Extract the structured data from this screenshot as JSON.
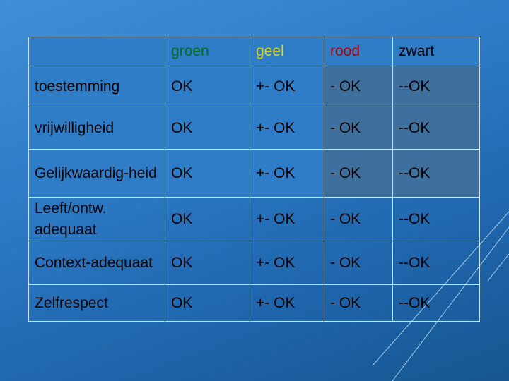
{
  "table": {
    "columns": [
      "",
      "groen",
      "geel",
      "rood",
      "zwart"
    ],
    "column_colors": [
      "",
      "#0b6b1f",
      "#d8d31a",
      "#b00000",
      "#000000"
    ],
    "rows": [
      {
        "label": "toestemming",
        "cells": [
          "OK",
          "+- OK",
          "- OK",
          "--OK"
        ]
      },
      {
        "label": "vrijwilligheid",
        "cells": [
          "OK",
          "+- OK",
          "- OK",
          "--OK"
        ]
      },
      {
        "label": "Gelijkwaardig-heid",
        "cells": [
          "OK",
          "+- OK",
          "- OK",
          "--OK"
        ]
      },
      {
        "label": "Leeft/ontw. adequaat",
        "cells": [
          "OK",
          "+- OK",
          "- OK",
          "--OK"
        ]
      },
      {
        "label": "Context-adequaat",
        "cells": [
          "OK",
          "+- OK",
          "- OK",
          "--OK"
        ]
      },
      {
        "label": "Zelfrespect",
        "cells": [
          "OK",
          "+- OK",
          "- OK",
          "--OK"
        ]
      }
    ]
  }
}
